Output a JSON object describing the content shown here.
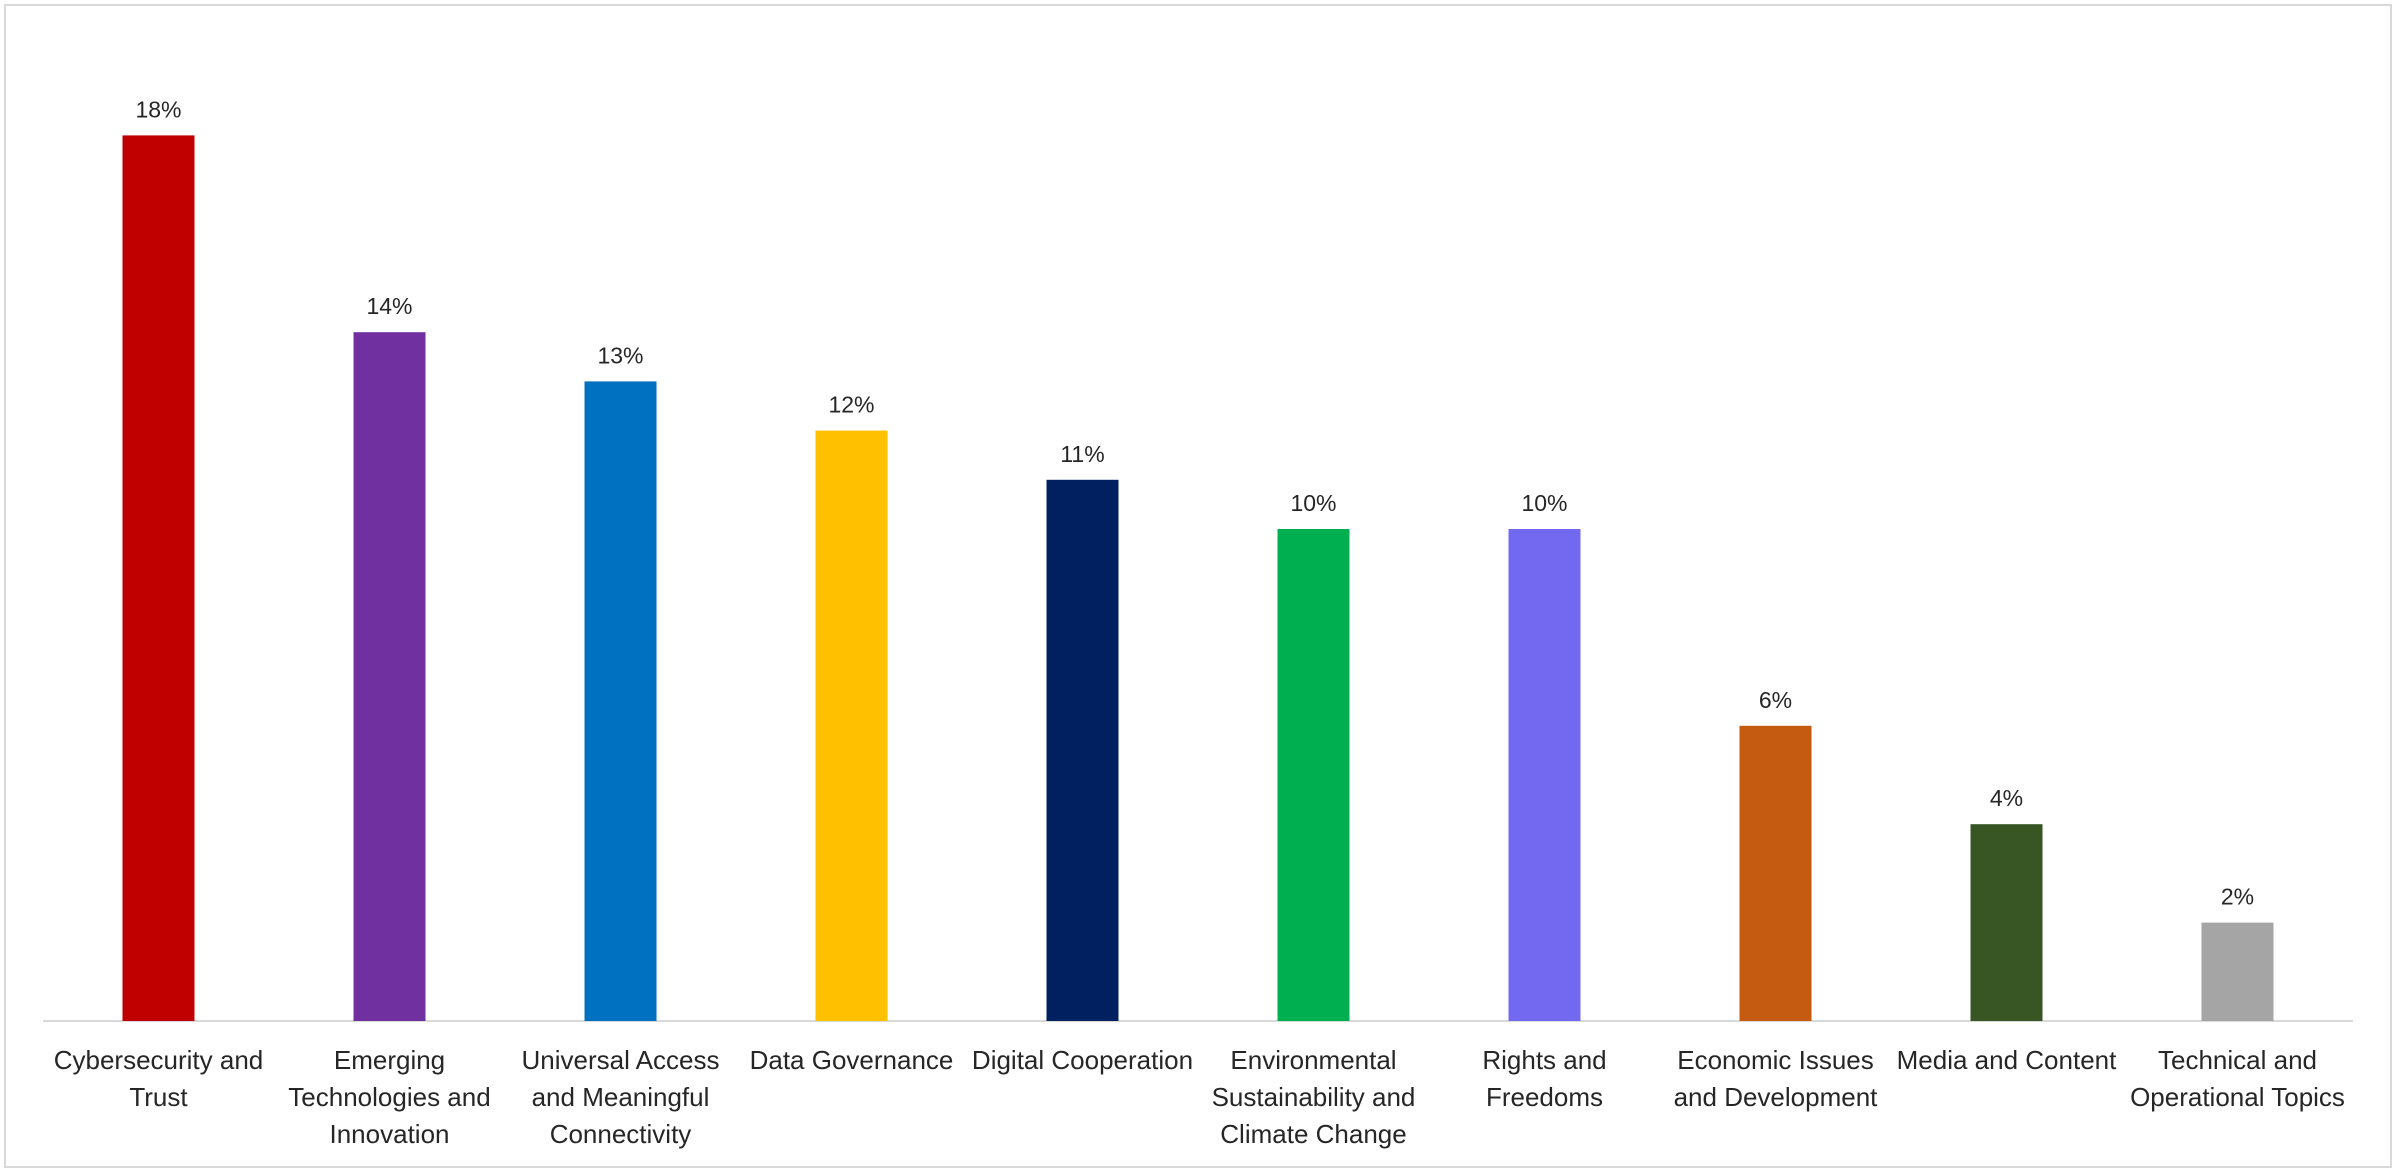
{
  "chart_data": {
    "type": "bar",
    "categories": [
      "Cybersecurity and Trust",
      "Emerging Technologies and Innovation",
      "Universal Access and Meaningful Connectivity",
      "Data Governance",
      "Digital Cooperation",
      "Environmental Sustainability and Climate Change",
      "Rights and Freedoms",
      "Economic Issues and Development",
      "Media and Content",
      "Technical and Operational Topics"
    ],
    "values": [
      18,
      14,
      13,
      12,
      11,
      10,
      10,
      6,
      4,
      2
    ],
    "value_labels": [
      "18%",
      "14%",
      "13%",
      "12%",
      "11%",
      "10%",
      "10%",
      "6%",
      "4%",
      "2%"
    ],
    "colors": [
      "#c00000",
      "#7030a0",
      "#0070c0",
      "#ffc000",
      "#002060",
      "#00b050",
      "#7369f0",
      "#c55a11",
      "#375623",
      "#a5a5a5"
    ],
    "ylim": [
      0,
      20
    ],
    "grid": false
  }
}
